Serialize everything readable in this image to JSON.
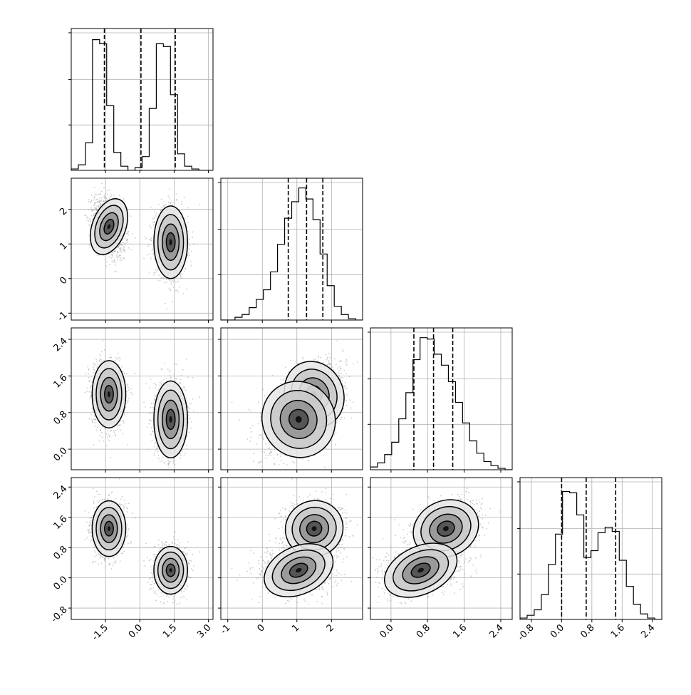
{
  "chart_data": {
    "type": "corner",
    "parameters": 4,
    "grid": true,
    "histogram_quantile_lines": "dashed",
    "hist_bins": 20,
    "ranges": [
      [
        -3.0,
        3.2
      ],
      [
        -1.2,
        2.9
      ],
      [
        -0.45,
        2.65
      ],
      [
        -1.1,
        2.65
      ]
    ],
    "xtick_labels": [
      [
        "-1.5",
        "0.0",
        "1.5",
        "3.0"
      ],
      [
        "-1",
        "0",
        "1",
        "2"
      ],
      [
        "0.0",
        "0.8",
        "1.6",
        "2.4"
      ],
      [
        "-0.8",
        "0.0",
        "0.8",
        "1.6",
        "2.4"
      ]
    ],
    "ytick_labels": [
      null,
      [
        "-1",
        "0",
        "1",
        "2"
      ],
      [
        "0.0",
        "0.8",
        "1.6",
        "2.4"
      ],
      [
        "-0.8",
        "0.0",
        "0.8",
        "1.6",
        "2.4"
      ]
    ],
    "quantiles": [
      [
        -1.55,
        0.05,
        1.55
      ],
      [
        0.75,
        1.28,
        1.75
      ],
      [
        0.5,
        0.93,
        1.35
      ],
      [
        0.0,
        0.65,
        1.43
      ]
    ],
    "histograms": [
      [
        0.01,
        0.04,
        0.2,
        0.95,
        0.92,
        0.47,
        0.13,
        0.03,
        0.0,
        0.02,
        0.1,
        0.45,
        0.92,
        0.9,
        0.55,
        0.12,
        0.03,
        0.01,
        0.0,
        0.0
      ],
      [
        0.0,
        0.0,
        0.02,
        0.04,
        0.09,
        0.15,
        0.22,
        0.35,
        0.55,
        0.74,
        0.86,
        0.96,
        0.88,
        0.73,
        0.48,
        0.25,
        0.1,
        0.04,
        0.01,
        0.0
      ],
      [
        0.02,
        0.05,
        0.11,
        0.2,
        0.37,
        0.56,
        0.8,
        0.96,
        0.95,
        0.84,
        0.76,
        0.64,
        0.49,
        0.34,
        0.21,
        0.12,
        0.06,
        0.03,
        0.01,
        0.0
      ],
      [
        0.01,
        0.03,
        0.07,
        0.18,
        0.4,
        0.62,
        0.93,
        0.92,
        0.76,
        0.45,
        0.5,
        0.63,
        0.67,
        0.64,
        0.43,
        0.24,
        0.11,
        0.04,
        0.01,
        0.0
      ]
    ],
    "mixture_components": [
      {
        "weight": 0.5,
        "mean": [
          -1.35,
          1.5,
          1.2,
          1.3
        ],
        "sd": [
          0.35,
          0.4,
          0.35,
          0.35
        ],
        "rho01": -0.35
      },
      {
        "weight": 0.5,
        "mean": [
          1.35,
          1.05,
          0.65,
          0.2
        ],
        "sd": [
          0.35,
          0.5,
          0.4,
          0.3
        ],
        "rho01": 0.0
      }
    ]
  }
}
